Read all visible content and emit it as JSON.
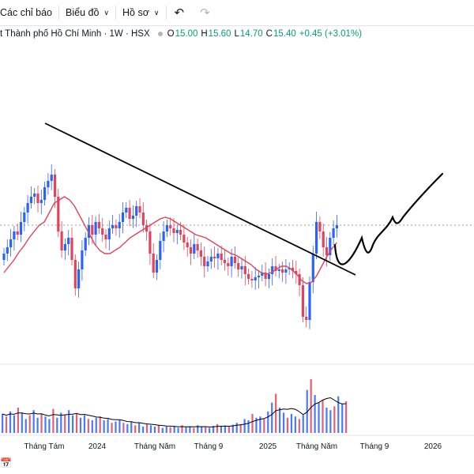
{
  "toolbar": {
    "indicators_label": "Các chỉ báo",
    "chart_type_label": "Biểu đồ",
    "profile_label": "Hồ sơ",
    "undo_icon": "undo-icon",
    "redo_icon": "redo-icon"
  },
  "legend": {
    "symbol_text": "t Thành phố Hồ Chí Minh · 1W · HSX",
    "open_label": "O",
    "open_value": "15.00",
    "high_label": "H",
    "high_value": "15.60",
    "low_label": "L",
    "low_value": "14.70",
    "close_label": "C",
    "close_value": "15.40",
    "change_text": "+0.45 (+3.01%)"
  },
  "colors": {
    "up": "#089981",
    "down": "#f23645",
    "candle_up": "#2962ff",
    "candle_down": "#e0435a",
    "ma": "#e0435a",
    "volume_line": "#000000",
    "trendline": "#000000"
  },
  "chart_data": {
    "type": "candlestick",
    "title": "",
    "x_labels": [
      "Tháng Tám",
      "2024",
      "Tháng Năm",
      "Tháng 9",
      "2025",
      "Tháng Năm",
      "Tháng 9",
      "2026"
    ],
    "last_price": 15.4,
    "closes": [
      13.6,
      14.0,
      14.5,
      15.0,
      14.8,
      15.6,
      16.2,
      16.8,
      17.2,
      17.4,
      16.8,
      17.0,
      17.8,
      18.2,
      18.6,
      17.2,
      15.0,
      13.8,
      14.2,
      14.6,
      13.2,
      11.4,
      12.6,
      13.8,
      14.6,
      15.4,
      14.8,
      15.6,
      15.2,
      14.8,
      14.5,
      15.2,
      15.4,
      15.2,
      15.6,
      16.2,
      16.5,
      15.8,
      16.0,
      16.6,
      16.2,
      15.4,
      15.0,
      13.6,
      12.4,
      13.2,
      14.4,
      15.0,
      15.4,
      15.2,
      14.9,
      15.1,
      14.8,
      14.3,
      14.0,
      13.6,
      14.2,
      13.8,
      13.4,
      12.8,
      13.1,
      13.4,
      13.3,
      13.6,
      13.2,
      13.0,
      12.8,
      13.4,
      13.0,
      12.6,
      12.8,
      12.3,
      12.0,
      11.9,
      12.1,
      12.2,
      12.4,
      12.0,
      12.3,
      12.8,
      12.5,
      12.6,
      12.4,
      12.6,
      12.7,
      12.5,
      12.3,
      11.6,
      9.6,
      9.4,
      11.8,
      13.6,
      15.6,
      15.0,
      14.0,
      13.5,
      14.6,
      15.2,
      15.4
    ],
    "ma_values": [
      12.4,
      12.8,
      13.2,
      13.7,
      14.1,
      14.6,
      15.0,
      15.4,
      15.6,
      16.2,
      16.8,
      17.0,
      17.2,
      17.0,
      16.6,
      16.0,
      15.4,
      14.8,
      14.2,
      13.8,
      13.6,
      13.6,
      13.8,
      14.0,
      14.3,
      14.6,
      14.8,
      15.0,
      15.2,
      15.4,
      15.6,
      15.8,
      15.9,
      15.8,
      15.6,
      15.4,
      15.2,
      15.0,
      14.8,
      14.7,
      14.6,
      14.4,
      14.2,
      14.0,
      13.8,
      13.6,
      13.5,
      13.3,
      13.1,
      12.9,
      12.6,
      12.4,
      12.3,
      12.4,
      12.6,
      12.8,
      12.8,
      12.6,
      12.3,
      11.9,
      11.7,
      11.8,
      12.2,
      12.8,
      13.4,
      13.9,
      14.3
    ],
    "volume_values": [
      3.0,
      2.6,
      3.4,
      2.8,
      4.0,
      3.2,
      2.2,
      2.8,
      3.6,
      2.4,
      3.0,
      2.6,
      2.2,
      3.8,
      2.4,
      3.2,
      2.8,
      3.6,
      2.8,
      3.0,
      2.4,
      2.8,
      2.2,
      2.0,
      2.4,
      2.6,
      2.0,
      2.2,
      1.6,
      1.8,
      2.0,
      1.6,
      1.4,
      1.8,
      1.2,
      1.6,
      1.0,
      1.4,
      1.2,
      1.0,
      1.2,
      0.8,
      1.0,
      0.9,
      1.1,
      0.8,
      1.2,
      0.9,
      1.0,
      0.8,
      1.2,
      1.0,
      0.9,
      0.8,
      1.1,
      1.4,
      1.0,
      1.2,
      1.0,
      1.3,
      1.6,
      1.4,
      2.2,
      2.0,
      3.0,
      2.4,
      2.6,
      2.2,
      3.4,
      4.8,
      6.2,
      4.0,
      3.2,
      2.4,
      3.0,
      2.6,
      2.2,
      2.8,
      6.8,
      8.5,
      6.0,
      4.8,
      5.2,
      4.0,
      3.6,
      4.2,
      5.8,
      4.6,
      5.0
    ]
  },
  "bottom_icon": "calendar-icon"
}
